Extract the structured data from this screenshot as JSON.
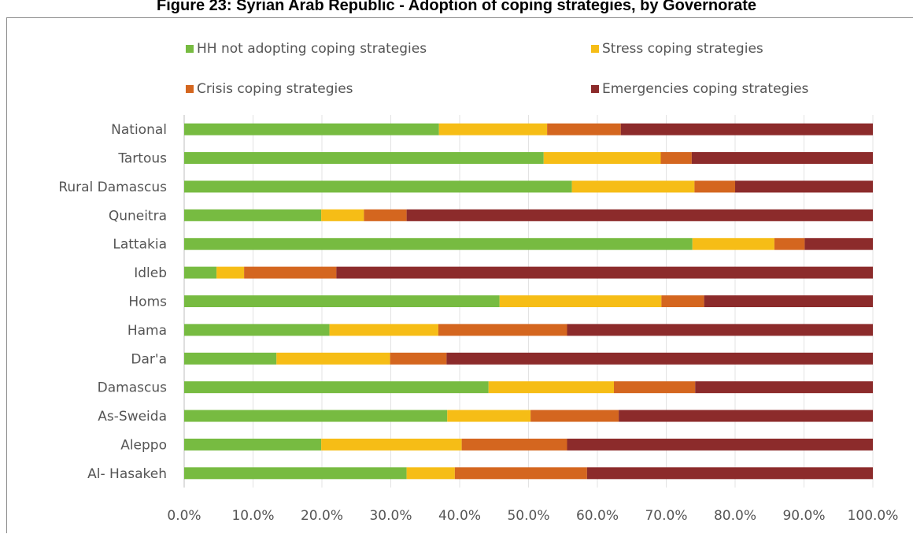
{
  "figure_title": "Figure 23: Syrian Arab Republic - Adoption of coping strategies, by Governorate",
  "chart_data": {
    "type": "bar",
    "orientation": "horizontal",
    "stacked": true,
    "title": "Figure 23: Syrian Arab Republic - Adoption of coping strategies, by Governorate",
    "xlabel": "",
    "ylabel": "",
    "xlim": [
      0,
      100
    ],
    "x_ticks": [
      "0.0%",
      "10.0%",
      "20.0%",
      "30.0%",
      "40.0%",
      "50.0%",
      "60.0%",
      "70.0%",
      "80.0%",
      "90.0%",
      "100.0%"
    ],
    "grid": true,
    "legend_position": "top",
    "categories": [
      "National",
      "Tartous",
      "Rural Damascus",
      "Quneitra",
      "Lattakia",
      "Idleb",
      "Homs",
      "Hama",
      "Dar'a",
      "Damascus",
      "As-Sweida",
      "Aleppo",
      "Al- Hasakeh"
    ],
    "series": [
      {
        "name": "HH not adopting coping strategies",
        "color": "#77bb41",
        "values": [
          37.0,
          52.2,
          56.3,
          19.9,
          73.8,
          4.7,
          45.8,
          21.1,
          13.4,
          44.2,
          38.2,
          19.9,
          32.3
        ]
      },
      {
        "name": "Stress coping strategies",
        "color": "#f6bd16",
        "values": [
          15.7,
          17.0,
          17.8,
          6.2,
          11.9,
          4.0,
          23.5,
          15.8,
          16.5,
          18.2,
          12.1,
          20.4,
          7.0
        ]
      },
      {
        "name": "Crisis coping strategies",
        "color": "#d4661f",
        "values": [
          10.7,
          4.5,
          5.9,
          6.2,
          4.4,
          13.4,
          6.2,
          18.7,
          8.2,
          11.8,
          12.8,
          15.3,
          19.2
        ]
      },
      {
        "name": "Emergencies coping strategies",
        "color": "#8c2b2b",
        "values": [
          36.6,
          26.3,
          20.0,
          67.7,
          9.9,
          77.9,
          24.5,
          44.4,
          61.9,
          25.8,
          36.9,
          44.4,
          41.5
        ]
      }
    ]
  }
}
